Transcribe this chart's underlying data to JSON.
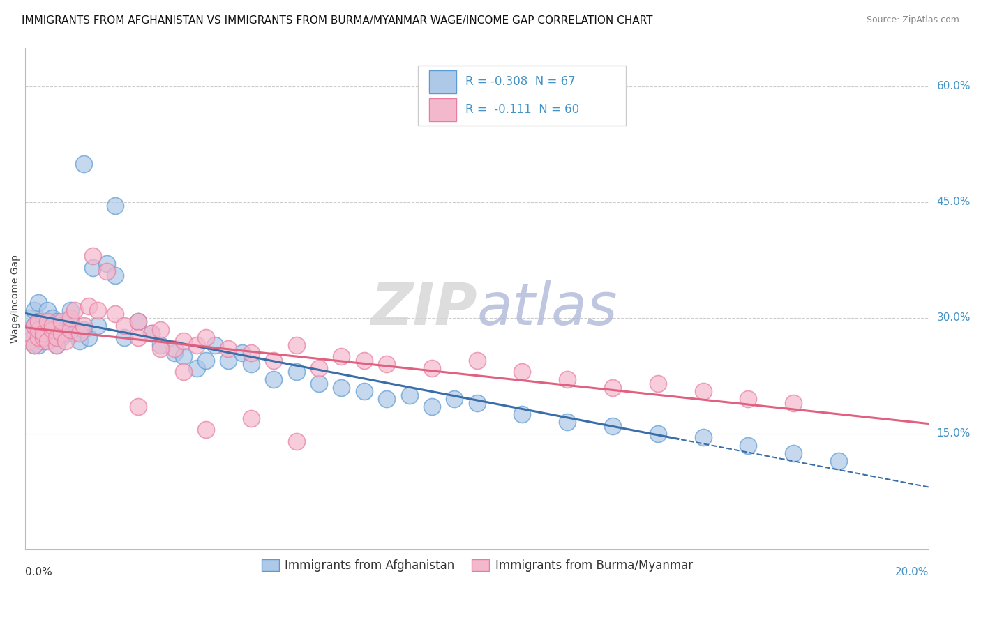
{
  "title": "IMMIGRANTS FROM AFGHANISTAN VS IMMIGRANTS FROM BURMA/MYANMAR WAGE/INCOME GAP CORRELATION CHART",
  "source": "Source: ZipAtlas.com",
  "ylabel": "Wage/Income Gap",
  "series": [
    {
      "name": "Immigrants from Afghanistan",
      "R": -0.308,
      "N": 67,
      "x": [
        0.001,
        0.001,
        0.001,
        0.002,
        0.002,
        0.002,
        0.002,
        0.003,
        0.003,
        0.003,
        0.003,
        0.004,
        0.004,
        0.004,
        0.005,
        0.005,
        0.005,
        0.006,
        0.006,
        0.006,
        0.007,
        0.007,
        0.008,
        0.008,
        0.009,
        0.01,
        0.01,
        0.011,
        0.012,
        0.013,
        0.014,
        0.015,
        0.016,
        0.018,
        0.02,
        0.022,
        0.025,
        0.028,
        0.03,
        0.033,
        0.035,
        0.038,
        0.04,
        0.042,
        0.045,
        0.048,
        0.05,
        0.055,
        0.06,
        0.065,
        0.07,
        0.075,
        0.08,
        0.085,
        0.09,
        0.095,
        0.1,
        0.11,
        0.12,
        0.13,
        0.14,
        0.15,
        0.16,
        0.17,
        0.18,
        0.013,
        0.02
      ],
      "y": [
        0.27,
        0.285,
        0.3,
        0.275,
        0.29,
        0.31,
        0.265,
        0.28,
        0.295,
        0.32,
        0.265,
        0.285,
        0.295,
        0.27,
        0.28,
        0.31,
        0.29,
        0.275,
        0.3,
        0.285,
        0.295,
        0.265,
        0.29,
        0.275,
        0.28,
        0.295,
        0.31,
        0.28,
        0.27,
        0.285,
        0.275,
        0.365,
        0.29,
        0.37,
        0.355,
        0.275,
        0.295,
        0.28,
        0.265,
        0.255,
        0.25,
        0.235,
        0.245,
        0.265,
        0.245,
        0.255,
        0.24,
        0.22,
        0.23,
        0.215,
        0.21,
        0.205,
        0.195,
        0.2,
        0.185,
        0.195,
        0.19,
        0.175,
        0.165,
        0.16,
        0.15,
        0.145,
        0.135,
        0.125,
        0.115,
        0.5,
        0.445
      ]
    },
    {
      "name": "Immigrants from Burma/Myanmar",
      "R": -0.111,
      "N": 60,
      "x": [
        0.001,
        0.001,
        0.002,
        0.002,
        0.003,
        0.003,
        0.003,
        0.004,
        0.004,
        0.005,
        0.005,
        0.006,
        0.006,
        0.007,
        0.007,
        0.008,
        0.008,
        0.009,
        0.01,
        0.01,
        0.011,
        0.012,
        0.013,
        0.014,
        0.015,
        0.016,
        0.018,
        0.02,
        0.022,
        0.025,
        0.028,
        0.03,
        0.033,
        0.035,
        0.038,
        0.04,
        0.045,
        0.05,
        0.055,
        0.06,
        0.065,
        0.07,
        0.075,
        0.08,
        0.09,
        0.1,
        0.11,
        0.12,
        0.13,
        0.14,
        0.15,
        0.16,
        0.025,
        0.03,
        0.035,
        0.04,
        0.05,
        0.06,
        0.025,
        0.17
      ],
      "y": [
        0.27,
        0.28,
        0.265,
        0.29,
        0.275,
        0.285,
        0.295,
        0.275,
        0.28,
        0.27,
        0.295,
        0.285,
        0.29,
        0.265,
        0.275,
        0.28,
        0.295,
        0.27,
        0.285,
        0.3,
        0.31,
        0.28,
        0.29,
        0.315,
        0.38,
        0.31,
        0.36,
        0.305,
        0.29,
        0.295,
        0.28,
        0.285,
        0.26,
        0.27,
        0.265,
        0.275,
        0.26,
        0.255,
        0.245,
        0.265,
        0.235,
        0.25,
        0.245,
        0.24,
        0.235,
        0.245,
        0.23,
        0.22,
        0.21,
        0.215,
        0.205,
        0.195,
        0.275,
        0.26,
        0.23,
        0.155,
        0.17,
        0.14,
        0.185,
        0.19
      ]
    }
  ],
  "xlim": [
    0.0,
    0.2
  ],
  "ylim": [
    0.0,
    0.65
  ],
  "yticks": [
    0.15,
    0.3,
    0.45,
    0.6
  ],
  "ytick_labels": [
    "15.0%",
    "30.0%",
    "45.0%",
    "60.0%"
  ],
  "bg_color": "#ffffff",
  "grid_color": "#cccccc",
  "blue_fc": "#aec8e8",
  "blue_ec": "#5b9bd5",
  "pink_fc": "#f4b8cc",
  "pink_ec": "#e87da0",
  "blue_line_color": "#3a6ea8",
  "pink_line_color": "#e06080",
  "title_fontsize": 11,
  "axis_label_fontsize": 10,
  "tick_fontsize": 11,
  "legend_fontsize": 12,
  "watermark_zip_color": "#d5d5d5",
  "watermark_atlas_color": "#b0b8d8"
}
